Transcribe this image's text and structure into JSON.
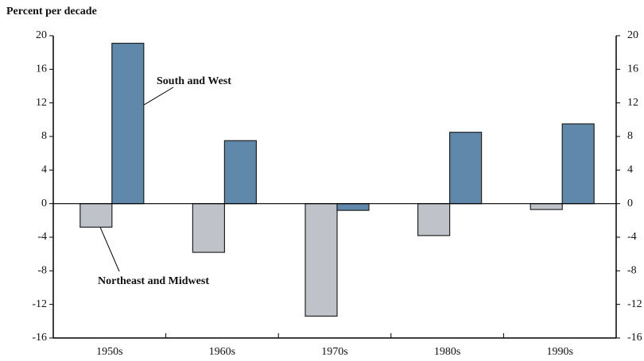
{
  "chart_data": {
    "type": "bar",
    "y_label": "Percent per decade",
    "categories": [
      "1950s",
      "1960s",
      "1970s",
      "1980s",
      "1990s"
    ],
    "series": [
      {
        "name": "Northeast and Midwest",
        "color": "#bfc3c9",
        "values": [
          -2.8,
          -5.8,
          -13.4,
          -3.8,
          -0.7
        ]
      },
      {
        "name": "South and West",
        "color": "#5f88aa",
        "values": [
          19.1,
          7.5,
          -0.8,
          8.5,
          9.5
        ]
      }
    ],
    "ylim": [
      -16,
      20
    ],
    "yticks": [
      -16,
      -12,
      -8,
      -4,
      0,
      4,
      8,
      12,
      16,
      20
    ],
    "right_axis": true
  }
}
